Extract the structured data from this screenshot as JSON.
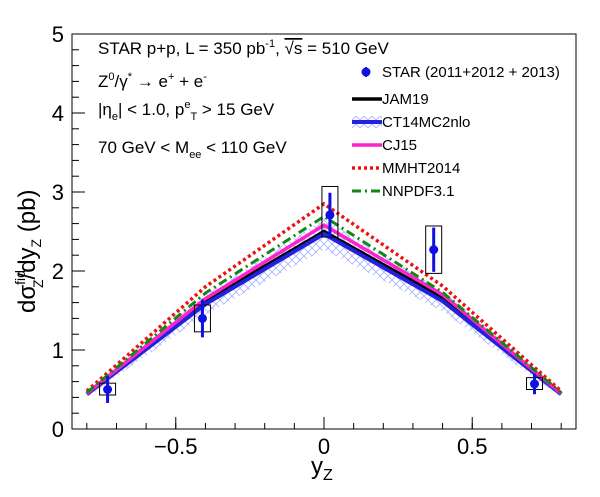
{
  "chart_data": {
    "type": "line",
    "xlabel": "y",
    "xlabel_sub": "Z",
    "ylabel": "dσ",
    "ylabel_sup": "fid",
    "ylabel_sub": "Z",
    "ylabel_rest": "/dy",
    "ylabel_sub2": "Z",
    "ylabel_unit": " (pb)",
    "xlim": [
      -0.85,
      0.85
    ],
    "ylim": [
      0,
      5
    ],
    "x_ticks": [
      -0.5,
      0,
      0.5
    ],
    "x_tick_labels": [
      "−0.5",
      "0",
      "0.5"
    ],
    "y_ticks": [
      0,
      1,
      2,
      3,
      4,
      5
    ],
    "y_tick_labels": [
      "0",
      "1",
      "2",
      "3",
      "4",
      "5"
    ],
    "info_lines": [
      {
        "parts": [
          {
            "t": "STAR p+p, L = 350 pb"
          },
          {
            "t": "-1",
            "s": "sup"
          },
          {
            "t": ", "
          },
          {
            "t": "√s",
            "s": "over"
          },
          {
            "t": " = 510 GeV"
          }
        ]
      },
      {
        "parts": [
          {
            "t": "Z"
          },
          {
            "t": "0",
            "s": "sup"
          },
          {
            "t": "/γ"
          },
          {
            "t": "*",
            "s": "sup"
          },
          {
            "t": " → e"
          },
          {
            "t": "+",
            "s": "sup"
          },
          {
            "t": " + e"
          },
          {
            "t": "-",
            "s": "sup"
          }
        ]
      },
      {
        "parts": [
          {
            "t": "|η"
          },
          {
            "t": "e",
            "s": "sub"
          },
          {
            "t": "| < 1.0, p"
          },
          {
            "t": "e",
            "s": "sup"
          },
          {
            "t": "T",
            "s": "sub"
          },
          {
            "t": " > 15 GeV"
          }
        ]
      },
      {
        "parts": [
          {
            "t": "70 GeV < M"
          },
          {
            "t": "ee",
            "s": "sub"
          },
          {
            "t": " < 110 GeV"
          }
        ]
      }
    ],
    "data_series": {
      "name": "STAR (2011+2012 + 2013)",
      "color": "#1010e0",
      "points": [
        {
          "x": -0.73,
          "y": 0.5,
          "stat": 0.17,
          "sys_lo": 0.43,
          "sys_hi": 0.58
        },
        {
          "x": -0.41,
          "y": 1.4,
          "stat": 0.24,
          "sys_lo": 1.23,
          "sys_hi": 1.57
        },
        {
          "x": 0.02,
          "y": 2.71,
          "stat": 0.28,
          "sys_lo": 2.43,
          "sys_hi": 3.07
        },
        {
          "x": 0.37,
          "y": 2.27,
          "stat": 0.28,
          "sys_lo": 1.97,
          "sys_hi": 2.57
        },
        {
          "x": 0.71,
          "y": 0.57,
          "stat": 0.13,
          "sys_lo": 0.5,
          "sys_hi": 0.65
        }
      ]
    },
    "series": [
      {
        "name": "JAM19",
        "color": "#000000",
        "style": "solid",
        "width": 3.5,
        "x": [
          -0.8,
          -0.4,
          0.0,
          0.4,
          0.8
        ],
        "values": [
          0.45,
          1.62,
          2.5,
          1.66,
          0.45
        ]
      },
      {
        "name": "CT14MC2nlo",
        "color": "#2222dd",
        "style": "solid",
        "width": 4,
        "band": true,
        "band_color": "#aab4ff",
        "x": [
          -0.8,
          -0.4,
          0.0,
          0.4,
          0.8
        ],
        "values": [
          0.44,
          1.58,
          2.47,
          1.62,
          0.44
        ],
        "band_lo": [
          0.4,
          1.45,
          2.27,
          1.49,
          0.4
        ],
        "band_hi": [
          0.48,
          1.7,
          2.66,
          1.75,
          0.48
        ]
      },
      {
        "name": "CJ15",
        "color": "#ff22cc",
        "style": "solid",
        "width": 3.5,
        "x": [
          -0.8,
          -0.4,
          0.0,
          0.4,
          0.8
        ],
        "values": [
          0.45,
          1.65,
          2.58,
          1.7,
          0.45
        ]
      },
      {
        "name": "MMHT2014",
        "color": "#ee1111",
        "style": "dotted",
        "width": 3.5,
        "x": [
          -0.8,
          -0.4,
          0.0,
          0.4,
          0.8
        ],
        "values": [
          0.48,
          1.8,
          2.85,
          1.81,
          0.48
        ]
      },
      {
        "name": "NNPDF3.1",
        "color": "#118811",
        "style": "dashdot",
        "width": 3,
        "x": [
          -0.8,
          -0.4,
          0.0,
          0.4,
          0.8
        ],
        "values": [
          0.46,
          1.72,
          2.69,
          1.73,
          0.46
        ]
      }
    ]
  }
}
